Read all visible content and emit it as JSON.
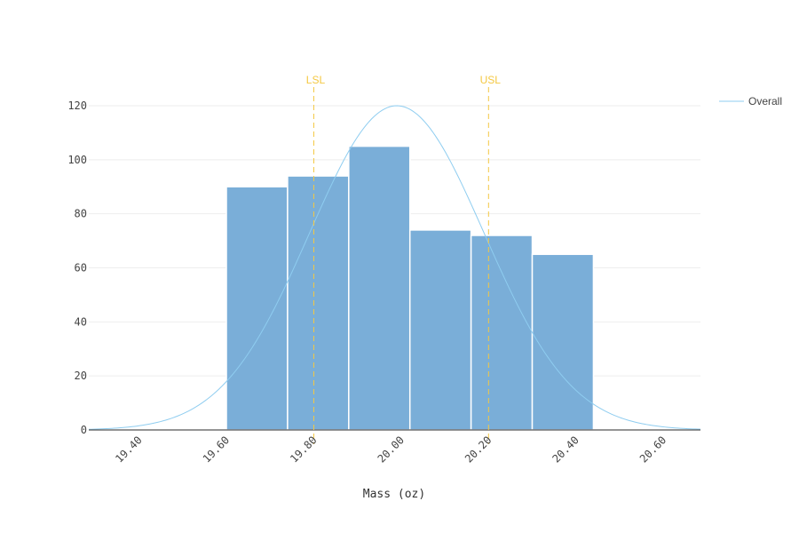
{
  "chart_data": {
    "type": "bar",
    "subtype": "histogram",
    "xlabel": "Mass (oz)",
    "ylabel": "",
    "xlim": [
      19.285,
      20.685
    ],
    "ylim": [
      0,
      120
    ],
    "xticks": [
      "19.40",
      "19.60",
      "19.80",
      "20.00",
      "20.20",
      "20.40",
      "20.60"
    ],
    "xtick_values": [
      19.4,
      19.6,
      19.8,
      20.0,
      20.2,
      20.4,
      20.6
    ],
    "yticks": [
      "0",
      "20",
      "40",
      "60",
      "80",
      "100",
      "120"
    ],
    "ytick_values": [
      0,
      20,
      40,
      60,
      80,
      100,
      120
    ],
    "bins": [
      {
        "start": 19.6,
        "end": 19.74,
        "count": 90
      },
      {
        "start": 19.74,
        "end": 19.88,
        "count": 94
      },
      {
        "start": 19.88,
        "end": 20.02,
        "count": 105
      },
      {
        "start": 20.02,
        "end": 20.16,
        "count": 74
      },
      {
        "start": 20.16,
        "end": 20.3,
        "count": 72
      },
      {
        "start": 20.3,
        "end": 20.44,
        "count": 65
      }
    ],
    "curve": {
      "name": "Overall",
      "mean": 19.99,
      "sd": 0.2,
      "peak": 120
    },
    "limits": [
      {
        "label": "LSL",
        "value": 19.8
      },
      {
        "label": "USL",
        "value": 20.2
      }
    ],
    "legend": {
      "position": "top-right",
      "entries": [
        "Overall"
      ]
    },
    "grid": true,
    "colors": {
      "bar": "#7aaed8",
      "bar_edge": "#ffffff",
      "curve": "#8fcdf0",
      "limit": "#f4c842",
      "grid": "#eeeeee",
      "axis": "#555555"
    }
  }
}
